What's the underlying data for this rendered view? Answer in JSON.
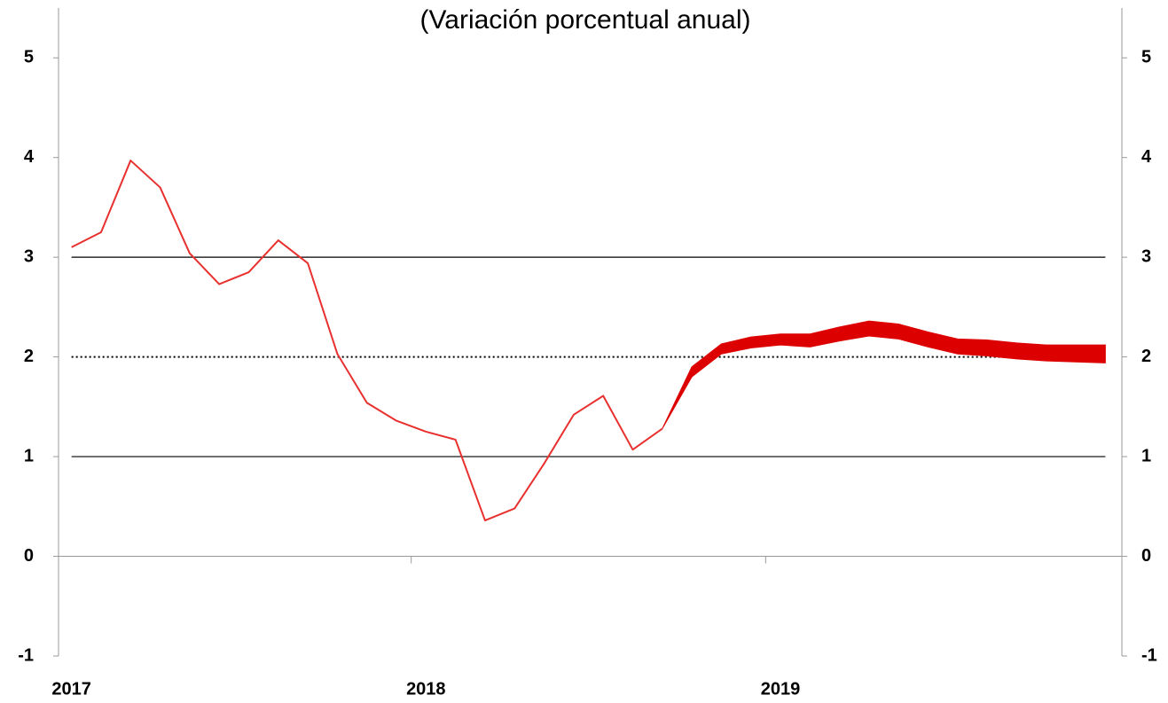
{
  "chart_data": {
    "type": "line",
    "title": "(Variación porcentual anual)",
    "categories": [
      "2017",
      null,
      null,
      null,
      null,
      null,
      null,
      null,
      null,
      null,
      null,
      null,
      "2018",
      null,
      null,
      null,
      null,
      null,
      null,
      null,
      null,
      null,
      null,
      null,
      "2019",
      null,
      null,
      null,
      null,
      null,
      null,
      null,
      null,
      null,
      null,
      null
    ],
    "series": [
      {
        "color": "#e8312f",
        "values": [
          3.1,
          3.25,
          3.97,
          3.7,
          3.04,
          2.73,
          2.85,
          3.17,
          2.94,
          2.03,
          1.54,
          1.36,
          1.25,
          1.17,
          0.36,
          0.48,
          0.93,
          1.42,
          1.61,
          1.07,
          1.28,
          null,
          null,
          null,
          null,
          null,
          null,
          null,
          null,
          null,
          null,
          null,
          null,
          null,
          null,
          null
        ]
      }
    ],
    "band": {
      "color": "#dd0000",
      "upper": [
        null,
        null,
        null,
        null,
        null,
        null,
        null,
        null,
        null,
        null,
        null,
        null,
        null,
        null,
        null,
        null,
        null,
        null,
        null,
        null,
        1.28,
        1.9,
        2.13,
        2.2,
        2.23,
        2.23,
        2.3,
        2.36,
        2.33,
        2.25,
        2.18,
        2.17,
        2.14,
        2.12,
        2.12,
        2.12
      ],
      "lower": [
        null,
        null,
        null,
        null,
        null,
        null,
        null,
        null,
        null,
        null,
        null,
        null,
        null,
        null,
        null,
        null,
        null,
        null,
        null,
        null,
        1.28,
        1.8,
        2.03,
        2.09,
        2.12,
        2.1,
        2.16,
        2.21,
        2.18,
        2.1,
        2.03,
        2.01,
        1.98,
        1.96,
        1.95,
        1.94
      ]
    },
    "reference_lines": [
      {
        "value": 3,
        "style": "solid"
      },
      {
        "value": 2,
        "style": "dotted"
      },
      {
        "value": 1,
        "style": "solid"
      }
    ],
    "ylim": [
      -1,
      5.5
    ],
    "yticks": [
      -1,
      0,
      1,
      2,
      3,
      4,
      5
    ],
    "y2lim": [
      -1,
      5.5
    ],
    "y2ticks": [
      -1,
      0,
      1,
      2,
      3,
      4,
      5
    ]
  }
}
